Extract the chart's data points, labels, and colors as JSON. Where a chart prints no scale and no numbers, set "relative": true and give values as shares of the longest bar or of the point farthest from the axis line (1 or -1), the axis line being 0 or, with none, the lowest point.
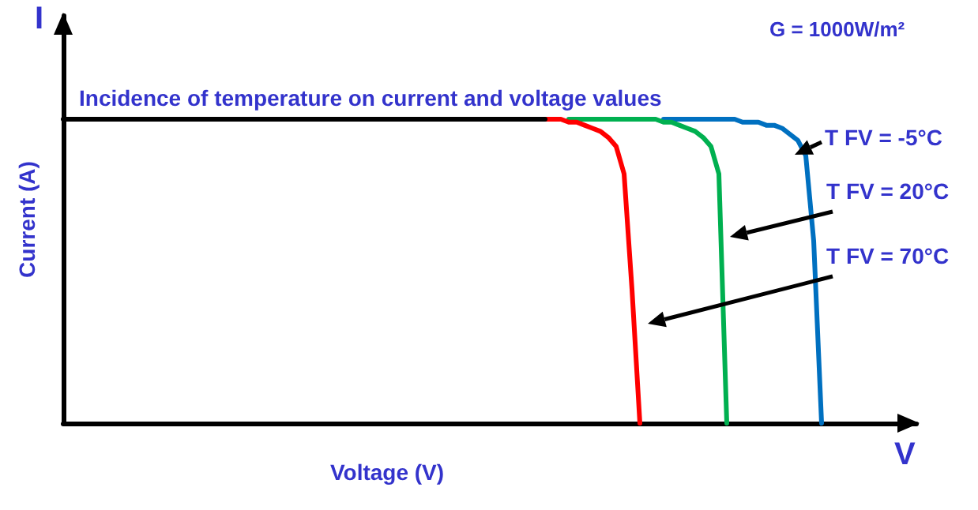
{
  "chart_data": {
    "type": "line",
    "relative": true,
    "title": "Incidence of temperature on current and voltage values",
    "xlabel": "Voltage (V)",
    "ylabel": "Current (A)",
    "grid": false,
    "marker": "none",
    "line_style": "solid",
    "categories": [
      null,
      null,
      null,
      null,
      null,
      null,
      null,
      null,
      null,
      null,
      null,
      null,
      null,
      null,
      null,
      null,
      null,
      null,
      null,
      null,
      null,
      null,
      null,
      null,
      null,
      null,
      null,
      null,
      null,
      null,
      null,
      null,
      null,
      null,
      null,
      null,
      null,
      null,
      null,
      null,
      null,
      null,
      null,
      null,
      null,
      null,
      null,
      null,
      null,
      null,
      null,
      null,
      null,
      null,
      null,
      null,
      null,
      null,
      null,
      null,
      null,
      null,
      null,
      null,
      null,
      null,
      null,
      null,
      null,
      null,
      null,
      null,
      null,
      null,
      null,
      null,
      null,
      null,
      null,
      null,
      null,
      null,
      null,
      null,
      null,
      null,
      null,
      null,
      null,
      null,
      null,
      null,
      null,
      null,
      null,
      null,
      null,
      null,
      null,
      null,
      null,
      null,
      null,
      null,
      null,
      null,
      null,
      null,
      null
    ],
    "series": [
      {
        "color": "#000000",
        "values": [
          1,
          1,
          1,
          1,
          1,
          1,
          1,
          1,
          1,
          1,
          1,
          1,
          1,
          1,
          1,
          1,
          1,
          1,
          1,
          1,
          1,
          1,
          1,
          1,
          1,
          1,
          1,
          1,
          1,
          1,
          1,
          1,
          1,
          1,
          1,
          1,
          1,
          1,
          1,
          1,
          1,
          1,
          1,
          1,
          1,
          1,
          1,
          1,
          1,
          1,
          1,
          1,
          1,
          1,
          1,
          1,
          1,
          1,
          1,
          1,
          1,
          1,
          null,
          null,
          null,
          null,
          null,
          null,
          null,
          null,
          null,
          null,
          null,
          null,
          null,
          null,
          null,
          null,
          null,
          null,
          null,
          null,
          null,
          null,
          null,
          null,
          null,
          null,
          null,
          null,
          null,
          null,
          null,
          null,
          null,
          null,
          null,
          null,
          null,
          null,
          null,
          null,
          null,
          null,
          null,
          null,
          null,
          null,
          null
        ]
      },
      {
        "color": "#ff0000",
        "values": [
          null,
          null,
          null,
          null,
          null,
          null,
          null,
          null,
          null,
          null,
          null,
          null,
          null,
          null,
          null,
          null,
          null,
          null,
          null,
          null,
          null,
          null,
          null,
          null,
          null,
          null,
          null,
          null,
          null,
          null,
          null,
          null,
          null,
          null,
          null,
          null,
          null,
          null,
          null,
          null,
          null,
          null,
          null,
          null,
          null,
          null,
          null,
          null,
          null,
          null,
          null,
          null,
          null,
          null,
          null,
          null,
          null,
          null,
          null,
          null,
          null,
          1,
          1,
          1,
          0.99,
          0.99,
          0.98,
          0.97,
          0.96,
          0.94,
          0.91,
          0.82,
          0.44,
          0,
          null,
          null,
          null,
          null,
          null,
          null,
          null,
          null,
          null,
          null,
          null,
          null,
          null,
          null,
          null,
          null,
          null,
          null,
          null,
          null,
          null,
          null,
          null,
          null,
          null,
          null,
          null,
          null,
          null,
          null,
          null,
          null,
          null,
          null,
          null
        ]
      },
      {
        "color": "#00b050",
        "values": [
          null,
          null,
          null,
          null,
          null,
          null,
          null,
          null,
          null,
          null,
          null,
          null,
          null,
          null,
          null,
          null,
          null,
          null,
          null,
          null,
          null,
          null,
          null,
          null,
          null,
          null,
          null,
          null,
          null,
          null,
          null,
          null,
          null,
          null,
          null,
          null,
          null,
          null,
          null,
          null,
          null,
          null,
          null,
          null,
          null,
          null,
          null,
          null,
          null,
          null,
          null,
          null,
          null,
          null,
          null,
          null,
          null,
          null,
          null,
          null,
          null,
          null,
          null,
          null,
          1,
          1,
          1,
          1,
          1,
          1,
          1,
          1,
          1,
          1,
          1,
          1,
          0.99,
          0.99,
          0.98,
          0.97,
          0.96,
          0.94,
          0.91,
          0.82,
          0,
          null,
          null,
          null,
          null,
          null,
          null,
          null,
          null,
          null,
          null,
          null,
          null,
          null,
          null,
          null,
          null,
          null,
          null,
          null,
          null,
          null,
          null,
          null,
          null
        ]
      },
      {
        "color": "#0070c0",
        "values": [
          null,
          null,
          null,
          null,
          null,
          null,
          null,
          null,
          null,
          null,
          null,
          null,
          null,
          null,
          null,
          null,
          null,
          null,
          null,
          null,
          null,
          null,
          null,
          null,
          null,
          null,
          null,
          null,
          null,
          null,
          null,
          null,
          null,
          null,
          null,
          null,
          null,
          null,
          null,
          null,
          null,
          null,
          null,
          null,
          null,
          null,
          null,
          null,
          null,
          null,
          null,
          null,
          null,
          null,
          null,
          null,
          null,
          null,
          null,
          null,
          null,
          null,
          null,
          null,
          null,
          null,
          null,
          null,
          null,
          null,
          null,
          null,
          null,
          null,
          null,
          null,
          1,
          1,
          1,
          1,
          1,
          1,
          1,
          1,
          1,
          1,
          0.99,
          0.99,
          0.99,
          0.98,
          0.98,
          0.97,
          0.95,
          0.93,
          0.88,
          0.6,
          0,
          null,
          null,
          null,
          null,
          null,
          null,
          null,
          null,
          null,
          null,
          null,
          null
        ]
      }
    ],
    "annotations": [
      "T FV = -5°C",
      "T FV = 20°C",
      "T FV = 70°C",
      "G = 1000W/m²",
      "I",
      "V"
    ]
  }
}
